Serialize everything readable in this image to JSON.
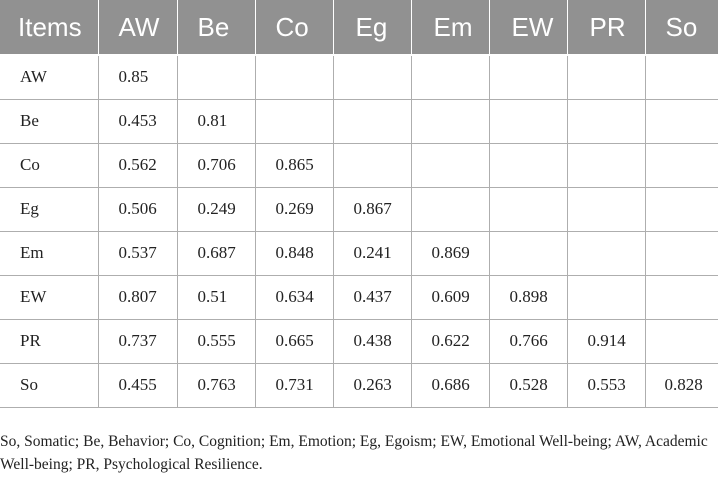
{
  "table": {
    "headers": [
      "Items",
      "AW",
      "Be",
      "Co",
      "Eg",
      "Em",
      "EW",
      "PR",
      "So"
    ],
    "rows": [
      [
        "AW",
        "0.85",
        "",
        "",
        "",
        "",
        "",
        "",
        ""
      ],
      [
        "Be",
        "0.453",
        "0.81",
        "",
        "",
        "",
        "",
        "",
        ""
      ],
      [
        "Co",
        "0.562",
        "0.706",
        "0.865",
        "",
        "",
        "",
        "",
        ""
      ],
      [
        "Eg",
        "0.506",
        "0.249",
        "0.269",
        "0.867",
        "",
        "",
        "",
        ""
      ],
      [
        "Em",
        "0.537",
        "0.687",
        "0.848",
        "0.241",
        "0.869",
        "",
        "",
        ""
      ],
      [
        "EW",
        "0.807",
        "0.51",
        "0.634",
        "0.437",
        "0.609",
        "0.898",
        "",
        ""
      ],
      [
        "PR",
        "0.737",
        "0.555",
        "0.665",
        "0.438",
        "0.622",
        "0.766",
        "0.914",
        ""
      ],
      [
        "So",
        "0.455",
        "0.763",
        "0.731",
        "0.263",
        "0.686",
        "0.528",
        "0.553",
        "0.828"
      ]
    ]
  },
  "footnote": "So, Somatic; Be, Behavior; Co, Cognition; Em, Emotion; Eg, Egoism; EW, Emotional Well-being; AW, Academic Well-being; PR, Psychological Resilience."
}
